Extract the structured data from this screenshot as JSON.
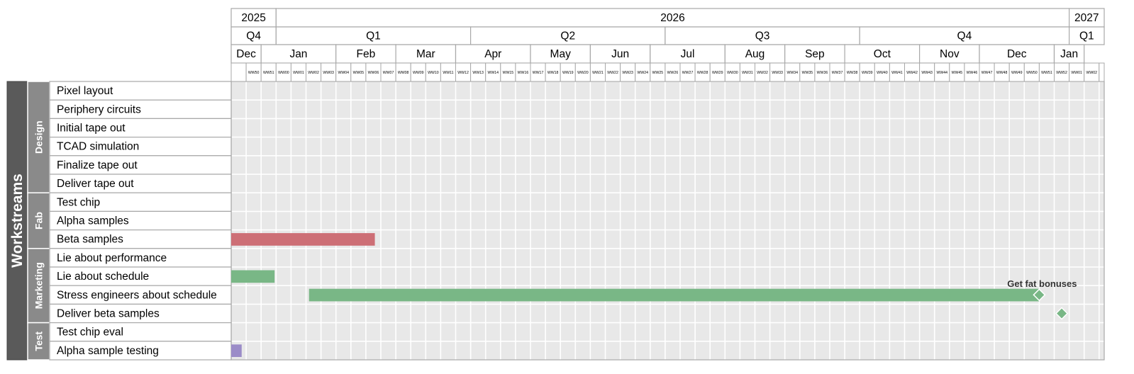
{
  "chart_data": {
    "type": "gantt",
    "title": "",
    "axis_title": "Workstreams",
    "timeline": {
      "years": [
        {
          "label": "2025",
          "weeks": 3
        },
        {
          "label": "2026",
          "weeks": 53
        },
        {
          "label": "2027",
          "weeks": 2.6
        }
      ],
      "quarters": [
        {
          "label": "Q4",
          "weeks": 3
        },
        {
          "label": "Q1",
          "weeks": 13
        },
        {
          "label": "Q2",
          "weeks": 13
        },
        {
          "label": "Q3",
          "weeks": 13
        },
        {
          "label": "Q4",
          "weeks": 14
        },
        {
          "label": "Q1",
          "weeks": 2.6
        }
      ],
      "months": [
        {
          "label": "Dec",
          "weeks": 2
        },
        {
          "label": "Jan",
          "weeks": 5
        },
        {
          "label": "Feb",
          "weeks": 4
        },
        {
          "label": "Mar",
          "weeks": 4
        },
        {
          "label": "Apr",
          "weeks": 5
        },
        {
          "label": "May",
          "weeks": 4
        },
        {
          "label": "Jun",
          "weeks": 4
        },
        {
          "label": "Jul",
          "weeks": 5
        },
        {
          "label": "Aug",
          "weeks": 4
        },
        {
          "label": "Sep",
          "weeks": 4
        },
        {
          "label": "Oct",
          "weeks": 5
        },
        {
          "label": "Nov",
          "weeks": 4
        },
        {
          "label": "Dec",
          "weeks": 5
        },
        {
          "label": "Jan",
          "weeks": 2
        }
      ],
      "weeks": [
        "",
        "WW50",
        "WW51",
        "WW00",
        "WW01",
        "WW02",
        "WW03",
        "WW04",
        "WW05",
        "WW06",
        "WW07",
        "WW08",
        "WW09",
        "WW10",
        "WW11",
        "WW12",
        "WW13",
        "WW14",
        "WW15",
        "WW16",
        "WW17",
        "WW18",
        "WW19",
        "WW20",
        "WW21",
        "WW22",
        "WW23",
        "WW24",
        "WW25",
        "WW26",
        "WW27",
        "WW28",
        "WW29",
        "WW30",
        "WW31",
        "WW32",
        "WW33",
        "WW34",
        "WW35",
        "WW36",
        "WW37",
        "WW38",
        "WW39",
        "WW40",
        "WW41",
        "WW42",
        "WW43",
        "WW44",
        "WW45",
        "WW46",
        "WW47",
        "WW48",
        "WW49",
        "WW50",
        "WW51",
        "WW52",
        "WW01",
        "WW02",
        ""
      ]
    },
    "groups": [
      {
        "name": "Design",
        "tasks": [
          "Pixel layout",
          "Periphery circuits",
          "Initial tape out",
          "TCAD simulation",
          "Finalize tape out",
          "Deliver tape out"
        ]
      },
      {
        "name": "Fab",
        "tasks": [
          "Test chip",
          "Alpha samples",
          "Beta samples"
        ]
      },
      {
        "name": "Marketing",
        "tasks": [
          "Lie about performance",
          "Lie about schedule",
          "Stress engineers about schedule",
          "Deliver beta samples"
        ]
      },
      {
        "name": "Test",
        "tasks": [
          "Test chip eval",
          "Alpha sample testing"
        ]
      }
    ],
    "bars": [
      {
        "task": "Beta samples",
        "start_week": 0,
        "end_week": 9.6,
        "color": "#cd6f76"
      },
      {
        "task": "Lie about schedule",
        "start_week": 0,
        "end_week": 2.9,
        "color": "#79b786"
      },
      {
        "task": "Stress engineers about schedule",
        "start_week": 5.2,
        "end_week": 54,
        "color": "#79b786"
      },
      {
        "task": "Alpha sample testing",
        "start_week": 0,
        "end_week": 0.7,
        "color": "#9b8cc8"
      }
    ],
    "milestones": [
      {
        "task": "Stress engineers about schedule",
        "week": 54.0,
        "color": "#79b786",
        "label": "Get fat bonuses"
      },
      {
        "task": "Deliver beta samples",
        "week": 55.5,
        "color": "#79b786",
        "label": ""
      }
    ],
    "colors": {
      "grid_bg": "#e8e8e8",
      "grid_line": "#ffffff",
      "header_border": "#a8a8a8",
      "workstreams_bg": "#5a5a5a",
      "group_bg": "#8a8a8a"
    }
  }
}
